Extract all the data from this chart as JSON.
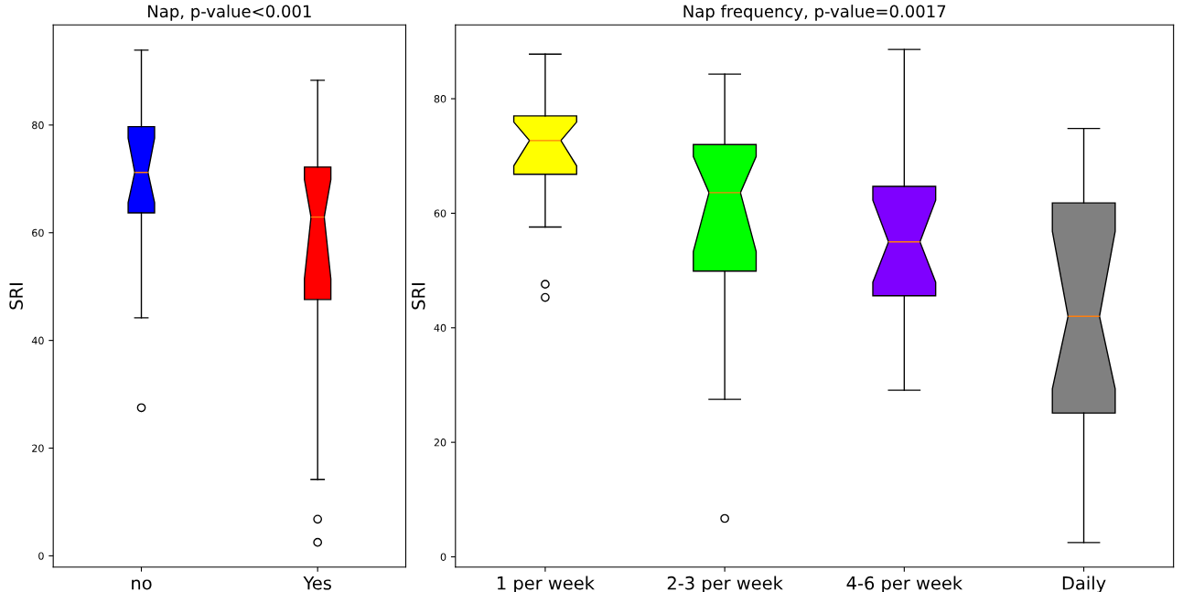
{
  "chart_data": [
    {
      "type": "box",
      "title": "Nap, p-value<0.001",
      "ylabel": "SRI",
      "categories": [
        "no",
        "Yes"
      ],
      "colors": [
        "#0000ff",
        "#ff0000"
      ],
      "ylim": [
        -2.1,
        98.6
      ],
      "yticks": [
        0,
        20,
        40,
        60,
        80
      ],
      "grid": false,
      "boxes": [
        {
          "low": 44.2,
          "q1": 63.7,
          "median": 71.2,
          "q3": 79.7,
          "high": 93.9,
          "outliers": [
            27.5
          ]
        },
        {
          "low": 14.2,
          "q1": 47.6,
          "median": 62.9,
          "q3": 72.2,
          "high": 88.3,
          "outliers": [
            6.8,
            2.5
          ]
        }
      ]
    },
    {
      "type": "box",
      "title": "Nap frequency, p-value=0.0017",
      "ylabel": "SRI",
      "categories": [
        "1 per week",
        "2-3 per week",
        "4-6 per week",
        "Daily"
      ],
      "colors": [
        "#ffff00",
        "#00ff00",
        "#7f00ff",
        "#808080"
      ],
      "ylim": [
        -1.8,
        92.9
      ],
      "yticks": [
        0,
        20,
        40,
        60,
        80
      ],
      "grid": false,
      "boxes": [
        {
          "low": 57.6,
          "q1": 66.8,
          "median": 72.7,
          "q3": 77.0,
          "high": 87.8,
          "outliers": [
            47.6,
            45.3
          ]
        },
        {
          "low": 27.5,
          "q1": 49.9,
          "median": 63.6,
          "q3": 72.0,
          "high": 84.3,
          "outliers": [
            6.7
          ]
        },
        {
          "low": 29.1,
          "q1": 45.6,
          "median": 55.0,
          "q3": 64.7,
          "high": 88.6
        },
        {
          "low": 2.5,
          "q1": 25.1,
          "median": 42.0,
          "q3": 61.8,
          "high": 74.8
        }
      ]
    }
  ]
}
